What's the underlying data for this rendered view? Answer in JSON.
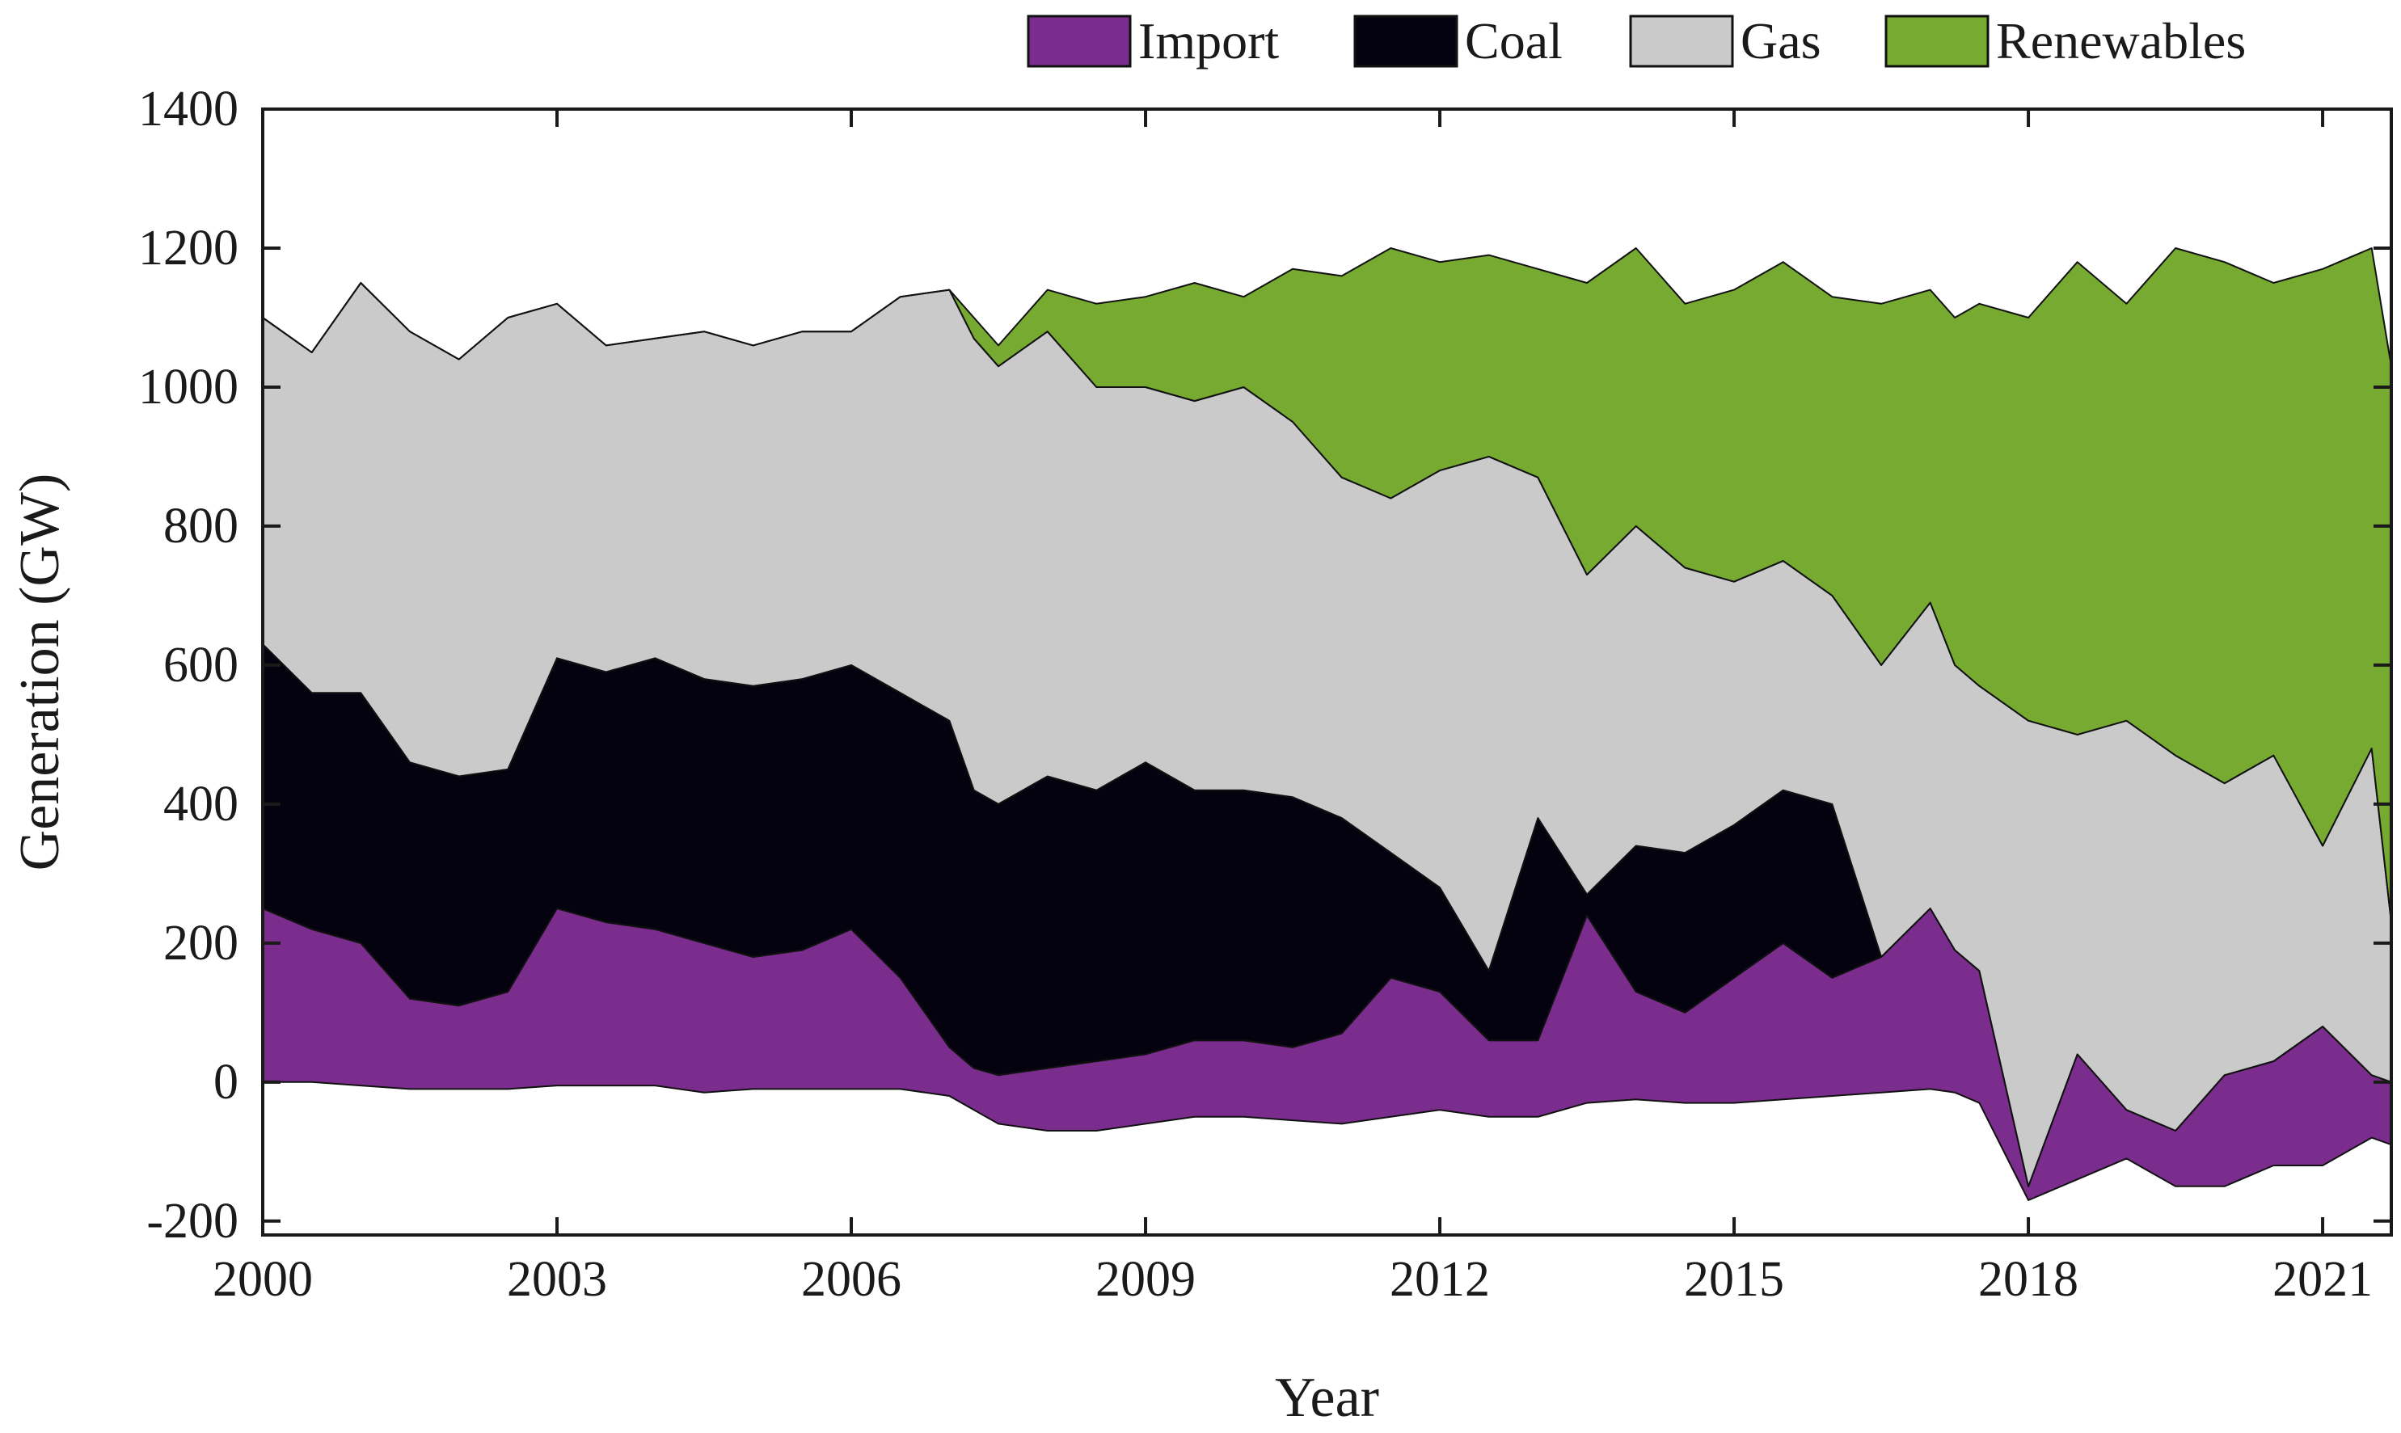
{
  "chart_data": {
    "type": "area",
    "stacked": true,
    "title": "",
    "xlabel": "Year",
    "ylabel": "Generation (GW)",
    "xlim": [
      2000,
      2021.7
    ],
    "ylim": [
      -220,
      1400
    ],
    "x_ticks": [
      2000,
      2003,
      2006,
      2009,
      2012,
      2015,
      2018,
      2021
    ],
    "x_tick_labels": [
      "2000",
      "2003",
      "2006",
      "2009",
      "2012",
      "2015",
      "2018",
      "2021"
    ],
    "y_ticks": [
      -200,
      0,
      200,
      400,
      600,
      800,
      1000,
      1200,
      1400
    ],
    "y_tick_labels": [
      "-200",
      "0",
      "200",
      "400",
      "600",
      "800",
      "1000",
      "1200",
      "1400"
    ],
    "grid": false,
    "legend_position": "top-right, outside above plot",
    "x": [
      2000.0,
      2000.5,
      2001.0,
      2001.5,
      2002.0,
      2002.5,
      2003.0,
      2003.5,
      2004.0,
      2004.5,
      2005.0,
      2005.5,
      2006.0,
      2006.5,
      2007.0,
      2007.25,
      2007.5,
      2008.0,
      2008.5,
      2009.0,
      2009.5,
      2010.0,
      2010.5,
      2011.0,
      2011.5,
      2012.0,
      2012.5,
      2013.0,
      2013.5,
      2014.0,
      2014.5,
      2015.0,
      2015.5,
      2016.0,
      2016.5,
      2017.0,
      2017.25,
      2017.5,
      2018.0,
      2018.5,
      2019.0,
      2019.5,
      2020.0,
      2020.5,
      2021.0,
      2021.5,
      2021.7
    ],
    "series": [
      {
        "name": "Import",
        "color": "#7b2d8e",
        "values": [
          [
            0,
            250
          ],
          [
            0,
            220
          ],
          [
            -5,
            200
          ],
          [
            -10,
            120
          ],
          [
            -10,
            110
          ],
          [
            -10,
            130
          ],
          [
            -5,
            250
          ],
          [
            -5,
            230
          ],
          [
            -5,
            220
          ],
          [
            -15,
            200
          ],
          [
            -10,
            180
          ],
          [
            -10,
            190
          ],
          [
            -10,
            220
          ],
          [
            -10,
            150
          ],
          [
            -20,
            50
          ],
          [
            -40,
            20
          ],
          [
            -60,
            10
          ],
          [
            -70,
            20
          ],
          [
            -70,
            30
          ],
          [
            -60,
            40
          ],
          [
            -50,
            60
          ],
          [
            -50,
            60
          ],
          [
            -55,
            50
          ],
          [
            -60,
            70
          ],
          [
            -50,
            150
          ],
          [
            -40,
            130
          ],
          [
            -50,
            60
          ],
          [
            -50,
            60
          ],
          [
            -30,
            240
          ],
          [
            -25,
            130
          ],
          [
            -30,
            100
          ],
          [
            -30,
            150
          ],
          [
            -25,
            200
          ],
          [
            -20,
            150
          ],
          [
            -15,
            180
          ],
          [
            -10,
            250
          ],
          [
            -15,
            190
          ],
          [
            -30,
            160
          ],
          [
            -170,
            -150
          ],
          [
            -140,
            40
          ],
          [
            -110,
            -40
          ],
          [
            -150,
            -70
          ],
          [
            -150,
            10
          ],
          [
            -120,
            30
          ],
          [
            -120,
            80
          ],
          [
            -80,
            10
          ],
          [
            -90,
            0
          ]
        ]
      },
      {
        "name": "Coal",
        "color": "#05020f",
        "values": [
          [
            250,
            630
          ],
          [
            220,
            560
          ],
          [
            200,
            560
          ],
          [
            120,
            460
          ],
          [
            110,
            440
          ],
          [
            130,
            450
          ],
          [
            250,
            610
          ],
          [
            230,
            590
          ],
          [
            220,
            610
          ],
          [
            200,
            580
          ],
          [
            180,
            570
          ],
          [
            190,
            580
          ],
          [
            220,
            600
          ],
          [
            150,
            560
          ],
          [
            50,
            520
          ],
          [
            20,
            420
          ],
          [
            10,
            400
          ],
          [
            20,
            440
          ],
          [
            30,
            420
          ],
          [
            40,
            460
          ],
          [
            60,
            420
          ],
          [
            60,
            420
          ],
          [
            50,
            410
          ],
          [
            70,
            380
          ],
          [
            150,
            330
          ],
          [
            130,
            280
          ],
          [
            60,
            160
          ],
          [
            60,
            380
          ],
          [
            240,
            270
          ],
          [
            130,
            340
          ],
          [
            100,
            330
          ],
          [
            150,
            370
          ],
          [
            200,
            420
          ],
          [
            150,
            400
          ],
          [
            180,
            180
          ],
          [
            250,
            250
          ],
          [
            190,
            190
          ],
          [
            160,
            160
          ],
          [
            -150,
            -150
          ],
          [
            40,
            40
          ],
          [
            -40,
            -40
          ],
          [
            -70,
            -70
          ],
          [
            10,
            10
          ],
          [
            30,
            30
          ],
          [
            80,
            80
          ],
          [
            10,
            10
          ],
          [
            0,
            0
          ]
        ]
      },
      {
        "name": "Gas",
        "color": "#cacaca",
        "values": [
          [
            630,
            1100
          ],
          [
            560,
            1050
          ],
          [
            560,
            1150
          ],
          [
            460,
            1080
          ],
          [
            440,
            1040
          ],
          [
            450,
            1100
          ],
          [
            610,
            1120
          ],
          [
            590,
            1060
          ],
          [
            610,
            1070
          ],
          [
            580,
            1080
          ],
          [
            570,
            1060
          ],
          [
            580,
            1080
          ],
          [
            600,
            1080
          ],
          [
            560,
            1130
          ],
          [
            520,
            1140
          ],
          [
            420,
            1070
          ],
          [
            400,
            1030
          ],
          [
            440,
            1080
          ],
          [
            420,
            1000
          ],
          [
            460,
            1000
          ],
          [
            420,
            980
          ],
          [
            420,
            1000
          ],
          [
            410,
            950
          ],
          [
            380,
            870
          ],
          [
            330,
            840
          ],
          [
            280,
            880
          ],
          [
            160,
            900
          ],
          [
            380,
            870
          ],
          [
            270,
            730
          ],
          [
            340,
            800
          ],
          [
            330,
            740
          ],
          [
            370,
            720
          ],
          [
            420,
            750
          ],
          [
            400,
            700
          ],
          [
            180,
            600
          ],
          [
            250,
            690
          ],
          [
            190,
            600
          ],
          [
            160,
            570
          ],
          [
            -150,
            520
          ],
          [
            40,
            500
          ],
          [
            -40,
            520
          ],
          [
            -70,
            470
          ],
          [
            10,
            430
          ],
          [
            30,
            470
          ],
          [
            80,
            340
          ],
          [
            10,
            480
          ],
          [
            0,
            230
          ]
        ]
      },
      {
        "name": "Renewables",
        "color": "#76aa31",
        "values": [
          [
            1100,
            1100
          ],
          [
            1050,
            1050
          ],
          [
            1150,
            1150
          ],
          [
            1080,
            1080
          ],
          [
            1040,
            1040
          ],
          [
            1100,
            1100
          ],
          [
            1120,
            1120
          ],
          [
            1060,
            1060
          ],
          [
            1070,
            1070
          ],
          [
            1080,
            1080
          ],
          [
            1060,
            1060
          ],
          [
            1080,
            1080
          ],
          [
            1080,
            1080
          ],
          [
            1130,
            1130
          ],
          [
            1140,
            1140
          ],
          [
            1070,
            1100
          ],
          [
            1030,
            1060
          ],
          [
            1080,
            1140
          ],
          [
            1000,
            1120
          ],
          [
            1000,
            1130
          ],
          [
            980,
            1150
          ],
          [
            1000,
            1130
          ],
          [
            950,
            1170
          ],
          [
            870,
            1160
          ],
          [
            840,
            1200
          ],
          [
            880,
            1180
          ],
          [
            900,
            1190
          ],
          [
            870,
            1170
          ],
          [
            730,
            1150
          ],
          [
            800,
            1200
          ],
          [
            740,
            1120
          ],
          [
            720,
            1140
          ],
          [
            750,
            1180
          ],
          [
            700,
            1130
          ],
          [
            600,
            1120
          ],
          [
            690,
            1140
          ],
          [
            600,
            1100
          ],
          [
            570,
            1120
          ],
          [
            520,
            1100
          ],
          [
            500,
            1180
          ],
          [
            520,
            1120
          ],
          [
            470,
            1200
          ],
          [
            430,
            1180
          ],
          [
            470,
            1150
          ],
          [
            340,
            1170
          ],
          [
            480,
            1200
          ],
          [
            230,
            1030
          ]
        ]
      }
    ]
  }
}
